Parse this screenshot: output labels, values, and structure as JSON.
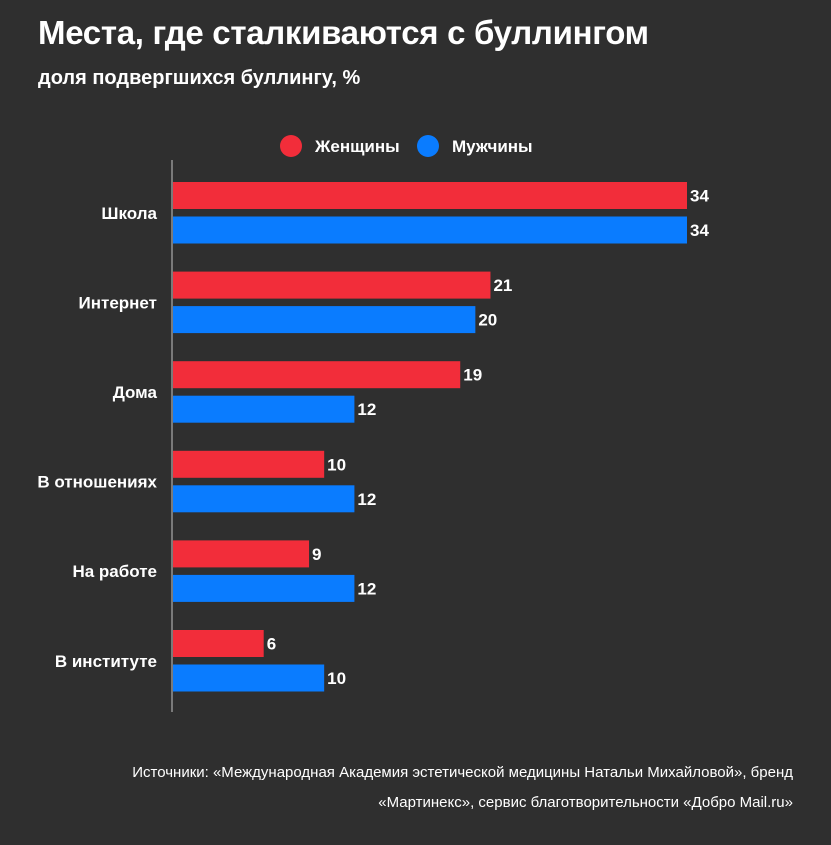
{
  "chart_data": {
    "type": "bar",
    "orientation": "horizontal",
    "title": "Места, где сталкиваются с буллингом",
    "subtitle": "доля подвергшихся буллингу, %",
    "categories": [
      "Школа",
      "Интернет",
      "Дома",
      "В отношениях",
      "На работе",
      "В институте"
    ],
    "series": [
      {
        "name": "Женщины",
        "color": "#f22d3a",
        "values": [
          34,
          21,
          19,
          10,
          9,
          6
        ]
      },
      {
        "name": "Мужчины",
        "color": "#0a7cff",
        "values": [
          34,
          20,
          12,
          12,
          12,
          10
        ]
      }
    ],
    "xlim": [
      0,
      34
    ],
    "legend_position": "top",
    "grid": false
  },
  "source": {
    "line1": "Источники: «Международная Академия эстетической медицины Натальи Михайловой», бренд",
    "line2": "«Мартинекс», сервис благотворительности «Добро Mail.ru»"
  }
}
